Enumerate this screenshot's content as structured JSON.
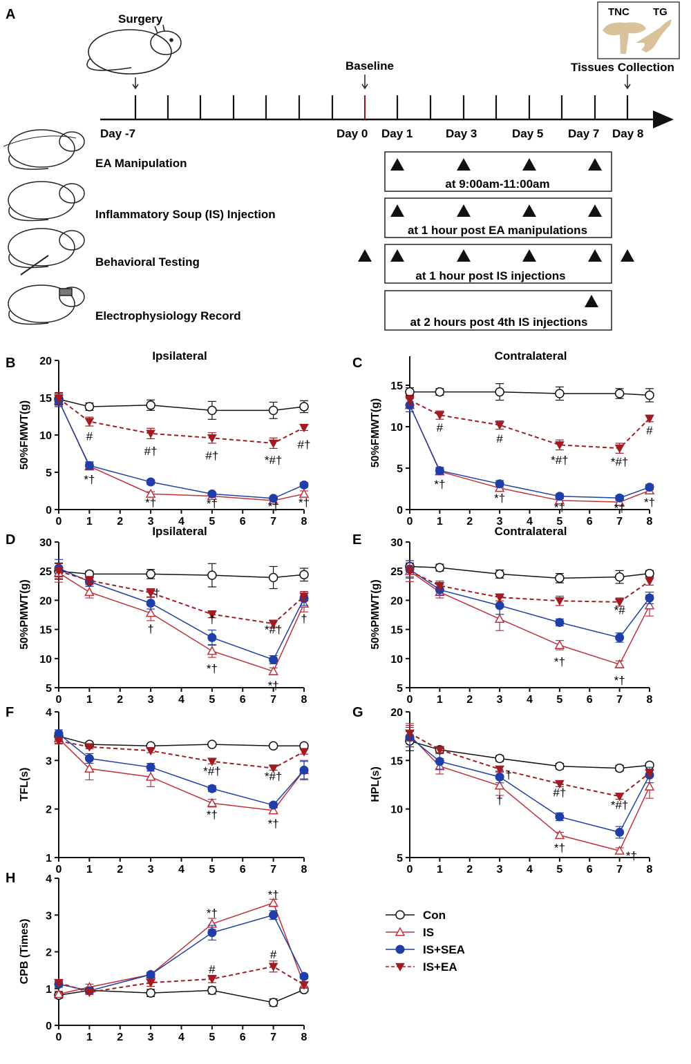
{
  "panel_a": {
    "letter": "A",
    "surgery_label": "Surgery",
    "baseline_label": "Baseline",
    "tissues_label": "Tissues Collection",
    "inset_tnc": "TNC",
    "inset_tg": "TG",
    "day_labels": [
      "Day -7",
      "Day 0",
      "Day 1",
      "Day 3",
      "Day 5",
      "Day 7",
      "Day 8"
    ],
    "rows": [
      {
        "label": "EA Manipulation",
        "box_text": "at 9:00am-11:00am"
      },
      {
        "label": "Inflammatory Soup (IS) Injection",
        "box_text": "at 1 hour post EA manipulations"
      },
      {
        "label": "Behavioral Testing",
        "box_text": "at 1 hour post IS injections"
      },
      {
        "label": "Electrophysiology Record",
        "box_text": "at 2 hours post 4th IS injections"
      }
    ],
    "colors": {
      "baseline_tick": "#8b1a1a",
      "rat_fill": "#ffffff",
      "tissue": "#d9c29a"
    }
  },
  "legend": [
    {
      "name": "Con",
      "marker": "circle-open",
      "color": "#111111"
    },
    {
      "name": "IS",
      "marker": "triangle-up-open",
      "color": "#c0303a"
    },
    {
      "name": "IS+SEA",
      "marker": "circle-filled",
      "color": "#1e3fa8"
    },
    {
      "name": "IS+EA",
      "marker": "triangle-down-filled",
      "color": "#a01c22"
    }
  ],
  "chart_data": [
    {
      "panel": "B",
      "type": "line",
      "title": "Ipsilateral",
      "xlabel": "",
      "ylabel": "50%FMWT(g)",
      "x": [
        0,
        1,
        3,
        5,
        7,
        8
      ],
      "xticks": [
        0,
        1,
        2,
        3,
        4,
        5,
        6,
        7,
        8
      ],
      "ylim": [
        0,
        20
      ],
      "yticks": [
        0,
        5,
        10,
        15,
        20
      ],
      "series": [
        {
          "name": "Con",
          "values": [
            14.8,
            13.8,
            14.0,
            13.3,
            13.3,
            13.8
          ],
          "errors": [
            0.8,
            0.5,
            0.7,
            1.2,
            1.1,
            0.8
          ]
        },
        {
          "name": "IS",
          "values": [
            14.6,
            5.8,
            2.1,
            1.8,
            1.2,
            2.1
          ],
          "errors": [
            0.8,
            0.5,
            0.3,
            0.3,
            0.2,
            0.4
          ]
        },
        {
          "name": "IS+SEA",
          "values": [
            14.6,
            5.9,
            3.7,
            2.1,
            1.5,
            3.3
          ],
          "errors": [
            0.8,
            0.5,
            0.3,
            0.2,
            0.2,
            0.3
          ]
        },
        {
          "name": "IS+EA",
          "values": [
            14.9,
            11.8,
            10.2,
            9.6,
            8.9,
            11.0
          ],
          "errors": [
            0.8,
            0.6,
            0.7,
            0.7,
            0.7,
            0.4
          ]
        }
      ],
      "annotations": [
        {
          "x": 1,
          "y": 9.3,
          "text": "#"
        },
        {
          "x": 1,
          "y": 3.5,
          "text": "*†"
        },
        {
          "x": 3,
          "y": 7.3,
          "text": "#†"
        },
        {
          "x": 3,
          "y": 0.4,
          "text": "*†"
        },
        {
          "x": 5,
          "y": 6.7,
          "text": "#†"
        },
        {
          "x": 5,
          "y": 0.3,
          "text": "*†"
        },
        {
          "x": 7,
          "y": 6.1,
          "text": "*#†"
        },
        {
          "x": 7,
          "y": -0.1,
          "text": "*†"
        },
        {
          "x": 8,
          "y": 8.2,
          "text": "#†"
        },
        {
          "x": 8,
          "y": 0.4,
          "text": "*†"
        }
      ]
    },
    {
      "panel": "C",
      "type": "line",
      "title": "Contralateral",
      "xlabel": "",
      "ylabel": "50%FMWT(g)",
      "x": [
        0,
        1,
        3,
        5,
        7,
        8
      ],
      "xticks": [
        0,
        1,
        2,
        3,
        4,
        5,
        6,
        7,
        8
      ],
      "ylim": [
        0,
        18.5
      ],
      "yticks": [
        0,
        5,
        10,
        15
      ],
      "series": [
        {
          "name": "Con",
          "values": [
            14.2,
            14.2,
            14.2,
            14.0,
            14.0,
            13.8
          ],
          "errors": [
            0.5,
            0.4,
            1.0,
            0.8,
            0.6,
            0.8
          ]
        },
        {
          "name": "IS",
          "values": [
            12.6,
            4.6,
            2.6,
            1.1,
            0.9,
            2.3
          ],
          "errors": [
            0.8,
            0.4,
            0.4,
            0.3,
            0.3,
            0.4
          ]
        },
        {
          "name": "IS+SEA",
          "values": [
            12.6,
            4.7,
            3.1,
            1.6,
            1.4,
            2.7
          ],
          "errors": [
            0.8,
            0.4,
            0.4,
            0.3,
            0.3,
            0.3
          ]
        },
        {
          "name": "IS+EA",
          "values": [
            13.2,
            11.4,
            10.2,
            7.8,
            7.4,
            11.0
          ],
          "errors": [
            0.6,
            0.5,
            0.5,
            0.6,
            0.6,
            0.4
          ]
        }
      ],
      "annotations": [
        {
          "x": 1,
          "y": 9.4,
          "text": "#"
        },
        {
          "x": 1,
          "y": 2.6,
          "text": "*†"
        },
        {
          "x": 3,
          "y": 8.1,
          "text": "#"
        },
        {
          "x": 3,
          "y": 0.9,
          "text": "*†"
        },
        {
          "x": 5,
          "y": 5.5,
          "text": "*#†"
        },
        {
          "x": 5,
          "y": -0.2,
          "text": "*†"
        },
        {
          "x": 7,
          "y": 5.3,
          "text": "*#†"
        },
        {
          "x": 7,
          "y": -0.3,
          "text": "*†"
        },
        {
          "x": 8,
          "y": 9.1,
          "text": "#"
        },
        {
          "x": 8,
          "y": 0.4,
          "text": "*†"
        }
      ]
    },
    {
      "panel": "D",
      "type": "line",
      "title": "Ipsilateral",
      "xlabel": "",
      "ylabel": "50%PMWT(g)",
      "x": [
        0,
        1,
        3,
        5,
        7,
        8
      ],
      "xticks": [
        0,
        1,
        2,
        3,
        4,
        5,
        6,
        7,
        8
      ],
      "ylim": [
        5,
        30
      ],
      "yticks": [
        5,
        10,
        15,
        20,
        25,
        30
      ],
      "series": [
        {
          "name": "Con",
          "values": [
            25.0,
            24.5,
            24.5,
            24.3,
            23.9,
            24.4
          ],
          "errors": [
            1.4,
            0.5,
            0.8,
            2.0,
            1.9,
            1.1
          ]
        },
        {
          "name": "IS",
          "values": [
            24.7,
            21.4,
            17.8,
            11.3,
            7.8,
            19.4
          ],
          "errors": [
            1.6,
            1.0,
            1.3,
            1.1,
            0.6,
            1.4
          ]
        },
        {
          "name": "IS+SEA",
          "values": [
            25.5,
            23.2,
            19.5,
            13.6,
            9.8,
            20.3
          ],
          "errors": [
            1.5,
            0.8,
            1.0,
            1.3,
            0.7,
            1.2
          ]
        },
        {
          "name": "IS+EA",
          "values": [
            25.0,
            23.4,
            21.3,
            17.6,
            16.0,
            20.7
          ],
          "errors": [
            1.3,
            0.7,
            0.7,
            0.6,
            0.6,
            0.8
          ]
        }
      ],
      "annotations": [
        {
          "x": 3.2,
          "y": 20.6,
          "text": "†"
        },
        {
          "x": 3,
          "y": 14.4,
          "text": "†"
        },
        {
          "x": 5,
          "y": 16.1,
          "text": "†"
        },
        {
          "x": 5,
          "y": 7.6,
          "text": "*†"
        },
        {
          "x": 7,
          "y": 14.3,
          "text": "*#†"
        },
        {
          "x": 7,
          "y": 4.7,
          "text": "*†"
        },
        {
          "x": 8,
          "y": 16.2,
          "text": "†"
        }
      ]
    },
    {
      "panel": "E",
      "type": "line",
      "title": "Contralateral",
      "xlabel": "",
      "ylabel": "50%PMWT(g)",
      "x": [
        0,
        1,
        3,
        5,
        7,
        8
      ],
      "xticks": [
        0,
        1,
        2,
        3,
        4,
        5,
        6,
        7,
        8
      ],
      "ylim": [
        5,
        30
      ],
      "yticks": [
        5,
        10,
        15,
        20,
        25,
        30
      ],
      "series": [
        {
          "name": "Con",
          "values": [
            25.8,
            25.6,
            24.5,
            23.8,
            24.0,
            24.6
          ],
          "errors": [
            0.6,
            0.6,
            0.7,
            0.8,
            1.1,
            0.5
          ]
        },
        {
          "name": "IS",
          "values": [
            25.0,
            21.4,
            16.8,
            12.3,
            9.0,
            19.1
          ],
          "errors": [
            1.8,
            1.0,
            2.0,
            0.8,
            0.6,
            1.8
          ]
        },
        {
          "name": "IS+SEA",
          "values": [
            25.3,
            21.8,
            19.1,
            16.2,
            13.6,
            20.4
          ],
          "errors": [
            1.5,
            0.9,
            1.5,
            0.6,
            0.8,
            1.0
          ]
        },
        {
          "name": "IS+EA",
          "values": [
            25.0,
            22.5,
            20.5,
            19.9,
            19.7,
            23.3
          ],
          "errors": [
            1.0,
            0.8,
            0.6,
            0.8,
            0.7,
            0.7
          ]
        }
      ],
      "annotations": [
        {
          "x": 7,
          "y": 17.6,
          "text": "*#"
        },
        {
          "x": 5,
          "y": 8.8,
          "text": "*†"
        },
        {
          "x": 7,
          "y": 5.6,
          "text": "*†"
        }
      ]
    },
    {
      "panel": "F",
      "type": "line",
      "title": "",
      "xlabel": "",
      "ylabel": "TFL(s)",
      "x": [
        0,
        1,
        3,
        5,
        7,
        8
      ],
      "xticks": [
        0,
        1,
        2,
        3,
        4,
        5,
        6,
        7,
        8
      ],
      "ylim": [
        1,
        4
      ],
      "yticks": [
        1,
        2,
        3,
        4
      ],
      "series": [
        {
          "name": "Con",
          "values": [
            3.5,
            3.33,
            3.3,
            3.33,
            3.3,
            3.3
          ],
          "errors": [
            0.08,
            0.04,
            0.04,
            0.04,
            0.04,
            0.04
          ]
        },
        {
          "name": "IS",
          "values": [
            3.45,
            2.83,
            2.66,
            2.12,
            1.97,
            2.8
          ],
          "errors": [
            0.1,
            0.23,
            0.2,
            0.08,
            0.05,
            0.2
          ]
        },
        {
          "name": "IS+SEA",
          "values": [
            3.55,
            3.04,
            2.86,
            2.42,
            2.08,
            2.8
          ],
          "errors": [
            0.08,
            0.1,
            0.08,
            0.06,
            0.05,
            0.18
          ]
        },
        {
          "name": "IS+EA",
          "values": [
            3.4,
            3.28,
            3.2,
            2.98,
            2.84,
            3.18
          ],
          "errors": [
            0.06,
            0.04,
            0.04,
            0.05,
            0.04,
            0.05
          ]
        }
      ],
      "annotations": [
        {
          "x": 5,
          "y": 2.7,
          "text": "*#†"
        },
        {
          "x": 7,
          "y": 2.59,
          "text": "*#†"
        },
        {
          "x": 5,
          "y": 1.8,
          "text": "*†"
        },
        {
          "x": 7,
          "y": 1.62,
          "text": "*†"
        }
      ]
    },
    {
      "panel": "G",
      "type": "line",
      "title": "",
      "xlabel": "",
      "ylabel": "HPL(s)",
      "x": [
        0,
        1,
        3,
        5,
        7,
        8
      ],
      "xticks": [
        0,
        1,
        2,
        3,
        4,
        5,
        6,
        7,
        8
      ],
      "ylim": [
        5,
        20
      ],
      "yticks": [
        5,
        10,
        15,
        20
      ],
      "series": [
        {
          "name": "Con",
          "values": [
            17.0,
            16.1,
            15.2,
            14.4,
            14.2,
            14.5
          ],
          "errors": [
            1.0,
            0.3,
            0.3,
            0.3,
            0.3,
            0.2
          ]
        },
        {
          "name": "IS",
          "values": [
            17.6,
            14.4,
            12.4,
            7.3,
            5.7,
            12.3
          ],
          "errors": [
            1.2,
            0.8,
            1.0,
            0.3,
            0.3,
            1.2
          ]
        },
        {
          "name": "IS+SEA",
          "values": [
            17.4,
            14.9,
            13.3,
            9.2,
            7.6,
            13.5
          ],
          "errors": [
            1.0,
            0.8,
            0.6,
            0.4,
            0.6,
            0.8
          ]
        },
        {
          "name": "IS+EA",
          "values": [
            17.8,
            16.1,
            14.1,
            12.6,
            11.3,
            13.7
          ],
          "errors": [
            0.8,
            0.3,
            0.3,
            0.3,
            0.3,
            0.4
          ]
        }
      ],
      "annotations": [
        {
          "x": 3.3,
          "y": 13.1,
          "text": "†"
        },
        {
          "x": 3,
          "y": 10.5,
          "text": "†"
        },
        {
          "x": 5,
          "y": 11.3,
          "text": "#†"
        },
        {
          "x": 7,
          "y": 10.0,
          "text": "*#†"
        },
        {
          "x": 5,
          "y": 5.6,
          "text": "*†"
        },
        {
          "x": 7.4,
          "y": 4.8,
          "text": "*†"
        }
      ]
    },
    {
      "panel": "H",
      "type": "line",
      "title": "",
      "xlabel": "",
      "ylabel": "CPB (Times)",
      "x": [
        0,
        1,
        3,
        5,
        7,
        8
      ],
      "xticks": [
        0,
        1,
        2,
        3,
        4,
        5,
        6,
        7,
        8
      ],
      "ylim": [
        0,
        4
      ],
      "yticks": [
        0,
        1,
        2,
        3,
        4
      ],
      "series": [
        {
          "name": "Con",
          "values": [
            0.82,
            0.95,
            0.88,
            0.95,
            0.62,
            0.97
          ],
          "errors": [
            0.08,
            0.08,
            0.1,
            0.1,
            0.1,
            0.06
          ]
        },
        {
          "name": "IS",
          "values": [
            0.85,
            1.04,
            1.38,
            2.76,
            3.33,
            1.1
          ],
          "errors": [
            0.08,
            0.08,
            0.06,
            0.15,
            0.1,
            0.06
          ]
        },
        {
          "name": "IS+SEA",
          "values": [
            1.12,
            0.94,
            1.38,
            2.52,
            3.0,
            1.33
          ],
          "errors": [
            0.08,
            0.06,
            0.06,
            0.2,
            0.12,
            0.06
          ]
        },
        {
          "name": "IS+EA",
          "values": [
            1.16,
            0.9,
            1.16,
            1.26,
            1.6,
            1.1
          ],
          "errors": [
            0.08,
            0.06,
            0.1,
            0.1,
            0.15,
            0.06
          ]
        }
      ],
      "annotations": [
        {
          "x": 5,
          "y": 2.95,
          "text": "*†"
        },
        {
          "x": 7,
          "y": 3.45,
          "text": "*†"
        },
        {
          "x": 5,
          "y": 1.42,
          "text": "#"
        },
        {
          "x": 7,
          "y": 1.82,
          "text": "#"
        }
      ]
    }
  ]
}
